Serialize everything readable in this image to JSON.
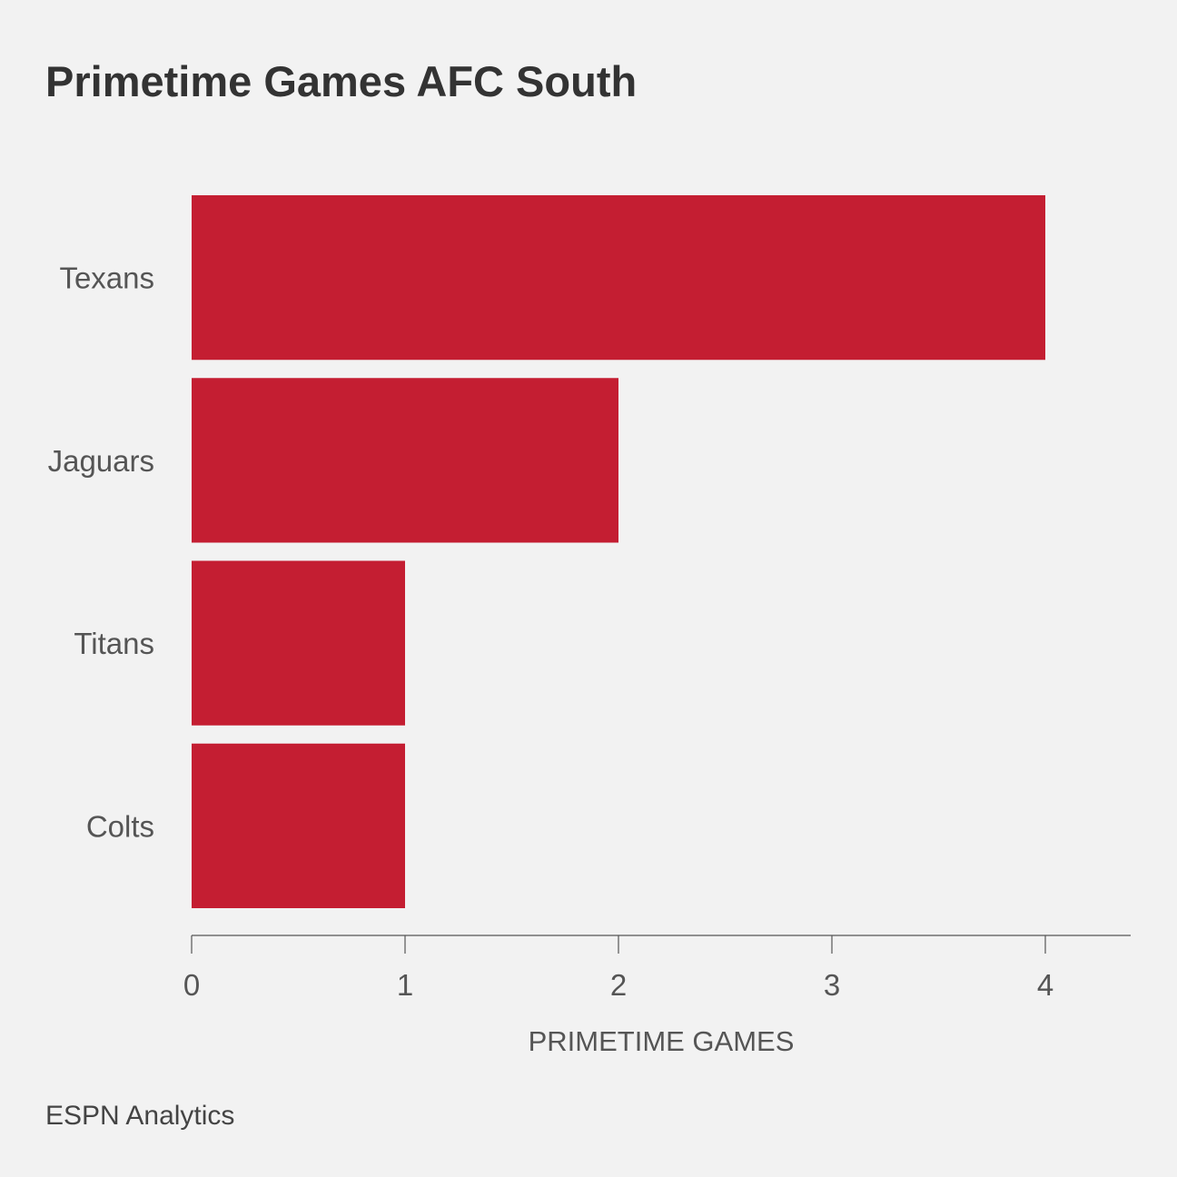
{
  "chart_data": {
    "type": "bar",
    "orientation": "horizontal",
    "title": "Primetime Games  AFC South",
    "categories": [
      "Texans",
      "Jaguars",
      "Titans",
      "Colts"
    ],
    "values": [
      4,
      2,
      1,
      1
    ],
    "xlabel": "PRIMETIME GAMES",
    "ylabel": "",
    "xlim": [
      0,
      4.4
    ],
    "xticks": [
      0,
      1,
      2,
      3,
      4
    ],
    "grid": false,
    "bar_color": "#c41e32",
    "axis_color": "#555555"
  },
  "footer": {
    "source": "ESPN Analytics"
  }
}
